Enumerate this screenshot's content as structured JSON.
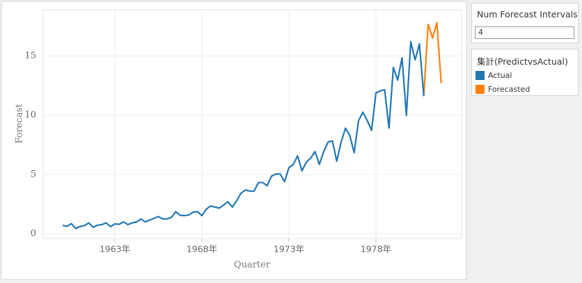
{
  "chart_data": {
    "type": "line",
    "x_label": "Quarter",
    "y_label": "Forecast",
    "x": [
      1960,
      1960.25,
      1960.5,
      1960.75,
      1961,
      1961.25,
      1961.5,
      1961.75,
      1962,
      1962.25,
      1962.5,
      1962.75,
      1963,
      1963.25,
      1963.5,
      1963.75,
      1964,
      1964.25,
      1964.5,
      1964.75,
      1965,
      1965.25,
      1965.5,
      1965.75,
      1966,
      1966.25,
      1966.5,
      1966.75,
      1967,
      1967.25,
      1967.5,
      1967.75,
      1968,
      1968.25,
      1968.5,
      1968.75,
      1969,
      1969.25,
      1969.5,
      1969.75,
      1970,
      1970.25,
      1970.5,
      1970.75,
      1971,
      1971.25,
      1971.5,
      1971.75,
      1972,
      1972.25,
      1972.5,
      1972.75,
      1973,
      1973.25,
      1973.5,
      1973.75,
      1974,
      1974.25,
      1974.5,
      1974.75,
      1975,
      1975.25,
      1975.5,
      1975.75,
      1976,
      1976.25,
      1976.5,
      1976.75,
      1977,
      1977.25,
      1977.5,
      1977.75,
      1978,
      1978.25,
      1978.5,
      1978.75,
      1979,
      1979.25,
      1979.5,
      1979.75,
      1980,
      1980.25,
      1980.5,
      1980.75,
      1981,
      1981.25,
      1981.5,
      1981.75
    ],
    "series": [
      {
        "name": "Actual",
        "color": "#1f77b4",
        "values": [
          0.71,
          0.63,
          0.85,
          0.44,
          0.61,
          0.69,
          0.92,
          0.55,
          0.72,
          0.77,
          0.92,
          0.6,
          0.83,
          0.8,
          1.0,
          0.77,
          0.92,
          1.0,
          1.24,
          1.0,
          1.16,
          1.3,
          1.45,
          1.25,
          1.26,
          1.38,
          1.86,
          1.56,
          1.53,
          1.59,
          1.83,
          1.86,
          1.53,
          2.07,
          2.34,
          2.25,
          2.16,
          2.43,
          2.7,
          2.25,
          2.79,
          3.42,
          3.69,
          3.6,
          3.6,
          4.32,
          4.32,
          4.05,
          4.86,
          5.04,
          5.04,
          4.41,
          5.58,
          5.85,
          6.57,
          5.31,
          6.03,
          6.39,
          6.93,
          5.85,
          6.93,
          7.74,
          7.83,
          6.12,
          7.74,
          8.91,
          8.28,
          6.84,
          9.54,
          10.26,
          9.54,
          8.73,
          11.88,
          12.06,
          12.15,
          8.91,
          14.04,
          12.96,
          14.85,
          9.99,
          16.2,
          14.67,
          16.02,
          11.61,
          null,
          null,
          null,
          null
        ]
      },
      {
        "name": "Forecasted",
        "color": "#ff7f0e",
        "values": [
          null,
          null,
          null,
          null,
          null,
          null,
          null,
          null,
          null,
          null,
          null,
          null,
          null,
          null,
          null,
          null,
          null,
          null,
          null,
          null,
          null,
          null,
          null,
          null,
          null,
          null,
          null,
          null,
          null,
          null,
          null,
          null,
          null,
          null,
          null,
          null,
          null,
          null,
          null,
          null,
          null,
          null,
          null,
          null,
          null,
          null,
          null,
          null,
          null,
          null,
          null,
          null,
          null,
          null,
          null,
          null,
          null,
          null,
          null,
          null,
          null,
          null,
          null,
          null,
          null,
          null,
          null,
          null,
          null,
          null,
          null,
          null,
          null,
          null,
          null,
          null,
          null,
          null,
          null,
          null,
          null,
          null,
          null,
          null,
          17.7,
          16.5,
          17.8,
          12.7
        ]
      }
    ],
    "xlim": [
      1958.88,
      1982.92
    ],
    "xticks": [
      {
        "value": 1963,
        "label": "1963年"
      },
      {
        "value": 1968,
        "label": "1968年"
      },
      {
        "value": 1973,
        "label": "1973年"
      },
      {
        "value": 1978,
        "label": "1978年"
      }
    ],
    "ylim": [
      -0.4,
      18.9
    ],
    "yticks": [
      0,
      5,
      10,
      15
    ],
    "grid": true,
    "legend_title": "集計(PredictvsActual)"
  },
  "controls": {
    "label": "Num Forecast Intervals",
    "value": "4"
  }
}
